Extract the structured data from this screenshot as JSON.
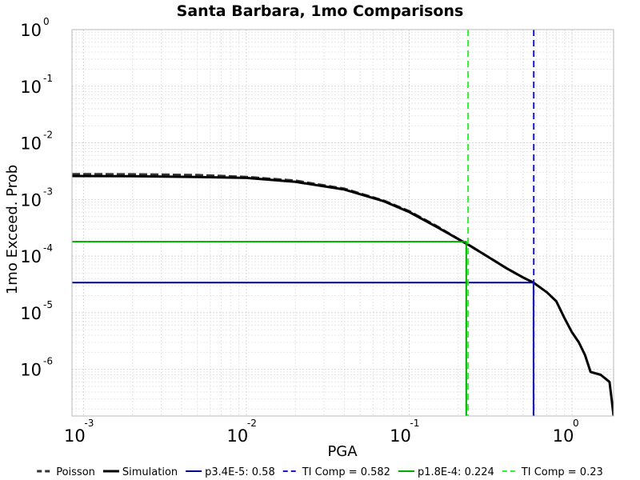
{
  "chart_data": {
    "type": "line",
    "title": "Santa Barbara, 1mo Comparisons",
    "xlabel": "PGA",
    "ylabel": "1mo Exceed. Prob",
    "xscale": "log",
    "yscale": "log",
    "xlim": [
      0.00085,
      1.8
    ],
    "ylim": [
      1.5e-07,
      1.0
    ],
    "grid": true,
    "legend_position": "bottom",
    "x_ticks": [
      {
        "base": "10",
        "exp": "-3",
        "value": 0.001
      },
      {
        "base": "10",
        "exp": "-2",
        "value": 0.01
      },
      {
        "base": "10",
        "exp": "-1",
        "value": 0.1
      },
      {
        "base": "10",
        "exp": "0",
        "value": 1
      }
    ],
    "y_ticks": [
      {
        "base": "10",
        "exp": "0",
        "value": 1
      },
      {
        "base": "10",
        "exp": "-1",
        "value": 0.1
      },
      {
        "base": "10",
        "exp": "-2",
        "value": 0.01
      },
      {
        "base": "10",
        "exp": "-3",
        "value": 0.001
      },
      {
        "base": "10",
        "exp": "-4",
        "value": 0.0001
      },
      {
        "base": "10",
        "exp": "-5",
        "value": 1e-05
      },
      {
        "base": "10",
        "exp": "-6",
        "value": 1e-06
      }
    ],
    "series": [
      {
        "name": "Poisson",
        "color": "#333333",
        "style": "dashed",
        "x": [
          0.00085,
          0.002,
          0.005,
          0.01,
          0.02,
          0.04,
          0.07,
          0.1,
          0.15,
          0.2,
          0.23,
          0.3,
          0.4,
          0.5,
          0.58
        ],
        "y": [
          0.0028,
          0.00278,
          0.0027,
          0.0025,
          0.00215,
          0.00155,
          0.00095,
          0.00062,
          0.00033,
          0.0002,
          0.00016,
          0.0001,
          6e-05,
          4.2e-05,
          3.4e-05
        ]
      },
      {
        "name": "Simulation",
        "color": "#000000",
        "style": "solid",
        "x": [
          0.00085,
          0.002,
          0.005,
          0.01,
          0.02,
          0.04,
          0.07,
          0.1,
          0.15,
          0.2,
          0.23,
          0.3,
          0.4,
          0.5,
          0.58,
          0.7,
          0.8,
          0.9,
          1.0,
          1.1,
          1.2,
          1.3,
          1.5,
          1.7,
          1.75,
          1.8
        ],
        "y": [
          0.0026,
          0.00258,
          0.0025,
          0.0024,
          0.00205,
          0.0015,
          0.00093,
          0.0006,
          0.00032,
          0.0002,
          0.00016,
          0.0001,
          6e-05,
          4.2e-05,
          3.4e-05,
          2.3e-05,
          1.6e-05,
          8e-06,
          4.5e-06,
          3e-06,
          1.8e-06,
          9e-07,
          8e-07,
          6e-07,
          3e-07,
          1.5e-07
        ]
      },
      {
        "name": "p3.4E-5: 0.58",
        "color": "#00008b",
        "style": "solid",
        "x": [
          0.00085,
          0.58,
          0.58
        ],
        "y": [
          3.4e-05,
          3.4e-05,
          1.5e-07
        ]
      },
      {
        "name": "TI Comp = 0.582",
        "color": "#1a1acc",
        "style": "dashed",
        "x": [
          0.582,
          0.582
        ],
        "y": [
          1.0,
          1.5e-07
        ]
      },
      {
        "name": "p1.8E-4: 0.224",
        "color": "#00aa00",
        "style": "solid",
        "x": [
          0.00085,
          0.224,
          0.224
        ],
        "y": [
          0.00018,
          0.00018,
          1.5e-07
        ]
      },
      {
        "name": "TI Comp = 0.23",
        "color": "#33ee33",
        "style": "dashed",
        "x": [
          0.23,
          0.23
        ],
        "y": [
          1.0,
          1.5e-07
        ]
      }
    ]
  }
}
